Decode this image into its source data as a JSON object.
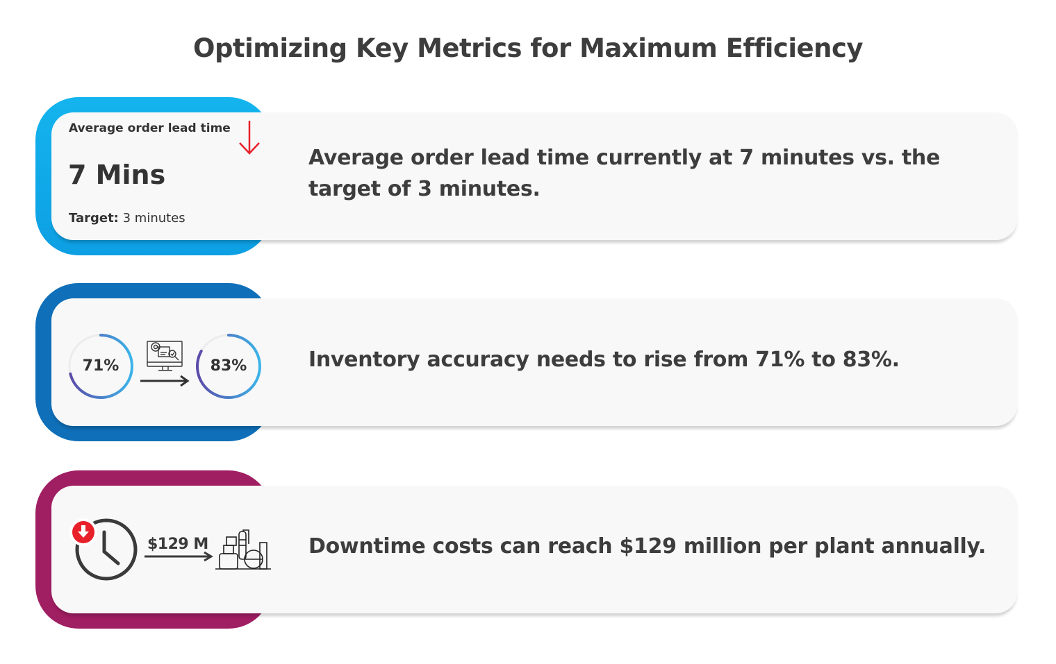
{
  "title": "Optimizing Key Metrics for Maximum Efficiency",
  "colors": {
    "card1": "#12a9e8",
    "card2": "#0f6fb8",
    "card3": "#a01e62",
    "down_arrow": "#e8202a",
    "ring_start": "#5b4aa8",
    "ring_end": "#3bb4ea"
  },
  "cards": [
    {
      "metric_label": "Average order lead time",
      "value": "7 Mins",
      "target_label": "Target:",
      "target_value": "3 minutes",
      "trend_icon": "arrow-down-icon",
      "description": "Average order lead time currently at 7 minutes vs. the target of 3 minutes."
    },
    {
      "from_value": "71%",
      "to_value": "83%",
      "from_percent": 71,
      "to_percent": 83,
      "icon": "inventory-monitor-icon",
      "description": "Inventory accuracy needs to rise from 71% to 83%."
    },
    {
      "amount": "$129 M",
      "icons": [
        "clock-down-icon",
        "factory-icon"
      ],
      "description": "Downtime costs can reach $129 million per plant annually."
    }
  ]
}
